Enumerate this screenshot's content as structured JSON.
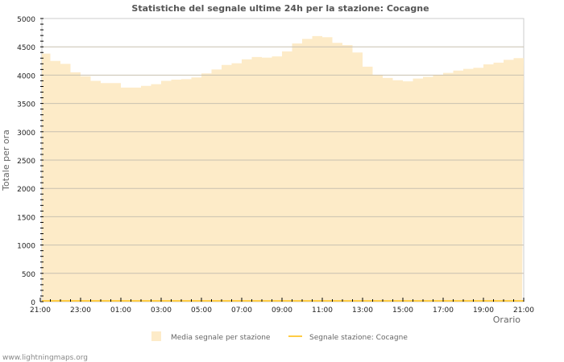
{
  "chart_data": {
    "type": "area",
    "title": "Statistiche del segnale ultime 24h per la stazione: Cocagne",
    "xlabel": "Orario",
    "ylabel": "Totale per ora",
    "ylim": [
      0,
      5000
    ],
    "yticks": [
      0,
      500,
      1000,
      1500,
      2000,
      2500,
      3000,
      3500,
      4000,
      4500,
      5000
    ],
    "xticks": [
      "21:00",
      "23:00",
      "01:00",
      "03:00",
      "05:00",
      "07:00",
      "09:00",
      "11:00",
      "13:00",
      "15:00",
      "17:00",
      "19:00",
      "21:00"
    ],
    "x_hours_offset_step": 0.5,
    "grid": true,
    "legend_position": "bottom",
    "series": [
      {
        "name": "Media segnale per stazione",
        "color": "#fdebc8",
        "kind": "area",
        "values": [
          4380,
          4250,
          4200,
          4050,
          3980,
          3900,
          3860,
          3860,
          3780,
          3780,
          3810,
          3840,
          3900,
          3920,
          3930,
          3960,
          4030,
          4100,
          4180,
          4210,
          4280,
          4320,
          4310,
          4330,
          4420,
          4560,
          4640,
          4690,
          4670,
          4570,
          4530,
          4400,
          4150,
          4000,
          3950,
          3910,
          3890,
          3940,
          3970,
          4000,
          4040,
          4080,
          4110,
          4130,
          4190,
          4220,
          4270,
          4300,
          4320
        ]
      },
      {
        "name": "Segnale stazione: Cocagne",
        "color": "#ffcc44",
        "kind": "line",
        "values": [
          0,
          0,
          0,
          0,
          0,
          0,
          0,
          0,
          0,
          0,
          0,
          0,
          0,
          0,
          0,
          0,
          0,
          0,
          0,
          0,
          0,
          0,
          0,
          0,
          0,
          0,
          0,
          0,
          0,
          0,
          0,
          0,
          0,
          0,
          0,
          0,
          0,
          0,
          0,
          0,
          0,
          0,
          0,
          0,
          0,
          0,
          0,
          0,
          0
        ]
      }
    ]
  },
  "footer": "www.lightningmaps.org"
}
